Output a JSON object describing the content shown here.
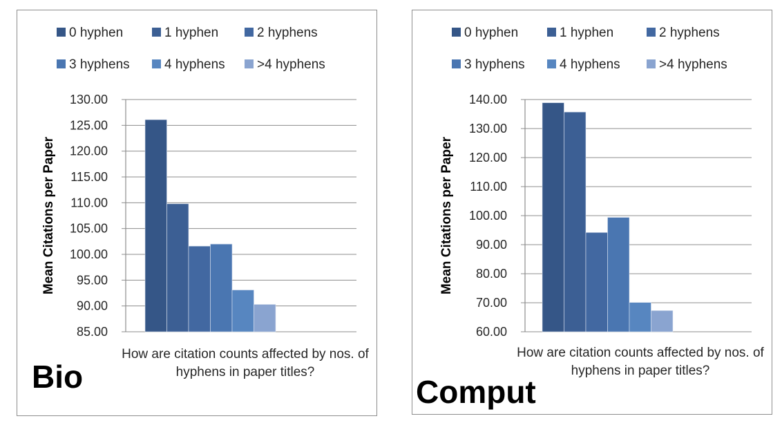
{
  "chart_data": [
    {
      "type": "bar",
      "panel_label": "Bio",
      "xlabel": "How are citation counts affected by nos. of hyphens in paper titles?",
      "ylabel": "Mean Citations per Paper",
      "ylim": [
        85,
        130
      ],
      "yticks": [
        85,
        90,
        95,
        100,
        105,
        110,
        115,
        120,
        125,
        130
      ],
      "ytick_labels": [
        "85.00",
        "90.00",
        "95.00",
        "100.00",
        "105.00",
        "110.00",
        "115.00",
        "120.00",
        "125.00",
        "130.00"
      ],
      "grid": true,
      "legend_position": "top",
      "series": [
        {
          "name": "0 hyphen",
          "value": 126.1,
          "color": "#355687"
        },
        {
          "name": "1 hyphen",
          "value": 109.8,
          "color": "#3c5f94"
        },
        {
          "name": "2 hyphens",
          "value": 101.6,
          "color": "#4268a1"
        },
        {
          "name": "3 hyphens",
          "value": 102.0,
          "color": "#4a76b1"
        },
        {
          "name": "4 hyphens",
          "value": 93.1,
          "color": "#5786c0"
        },
        {
          "name": ">4 hyphens",
          "value": 90.3,
          "color": "#8aa4d0"
        }
      ]
    },
    {
      "type": "bar",
      "panel_label": "Comput",
      "xlabel": "How are citation counts affected by nos. of hyphens in paper titles?",
      "ylabel": "Mean Citations per Paper",
      "ylim": [
        60,
        140
      ],
      "yticks": [
        60,
        70,
        80,
        90,
        100,
        110,
        120,
        130,
        140
      ],
      "ytick_labels": [
        "60.00",
        "70.00",
        "80.00",
        "90.00",
        "100.00",
        "110.00",
        "120.00",
        "130.00",
        "140.00"
      ],
      "grid": true,
      "legend_position": "top",
      "series": [
        {
          "name": "0 hyphen",
          "value": 138.9,
          "color": "#355687"
        },
        {
          "name": "1 hyphen",
          "value": 135.7,
          "color": "#3c5f94"
        },
        {
          "name": "2 hyphens",
          "value": 94.2,
          "color": "#4268a1"
        },
        {
          "name": "3 hyphens",
          "value": 99.4,
          "color": "#4a76b1"
        },
        {
          "name": "4 hyphens",
          "value": 70.1,
          "color": "#5786c0"
        },
        {
          "name": ">4 hyphens",
          "value": 67.3,
          "color": "#8aa4d0"
        }
      ]
    }
  ]
}
